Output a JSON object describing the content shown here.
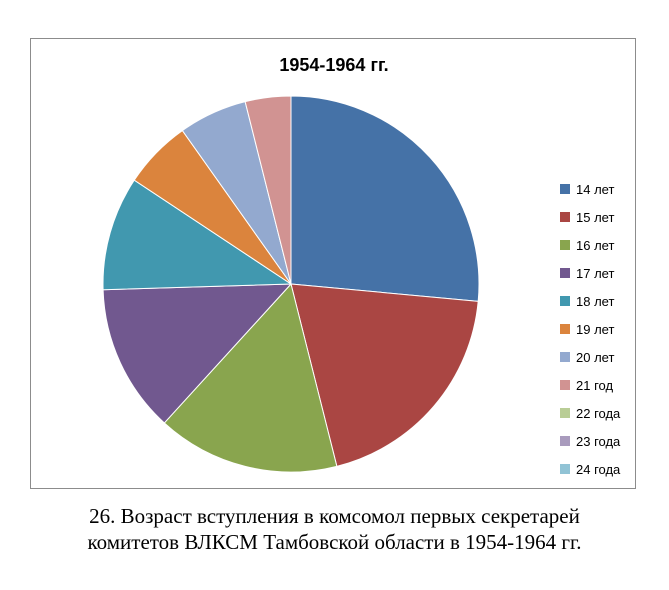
{
  "caption": {
    "line1": "26. Возраст вступления в комсомол первых секретарей",
    "line2": "комитетов ВЛКСМ Тамбовской области в 1954-1964 гг."
  },
  "chart_data": {
    "type": "pie",
    "title": "1954-1964 гг.",
    "legend_position": "right",
    "categories": [
      "14 лет",
      "15 лет",
      "16 лет",
      "17 лет",
      "18 лет",
      "19 лет",
      "20 лет",
      "21 год",
      "22 года",
      "23 года",
      "24 года"
    ],
    "values": [
      27,
      20,
      16,
      13,
      10,
      6,
      6,
      4,
      0,
      0,
      0
    ],
    "colors": [
      "#4572A7",
      "#AA4643",
      "#89A54E",
      "#71588F",
      "#4198AF",
      "#DB843D",
      "#93A9CF",
      "#D19392",
      "#B9CD96",
      "#A99BBD",
      "#91C3D5"
    ]
  }
}
